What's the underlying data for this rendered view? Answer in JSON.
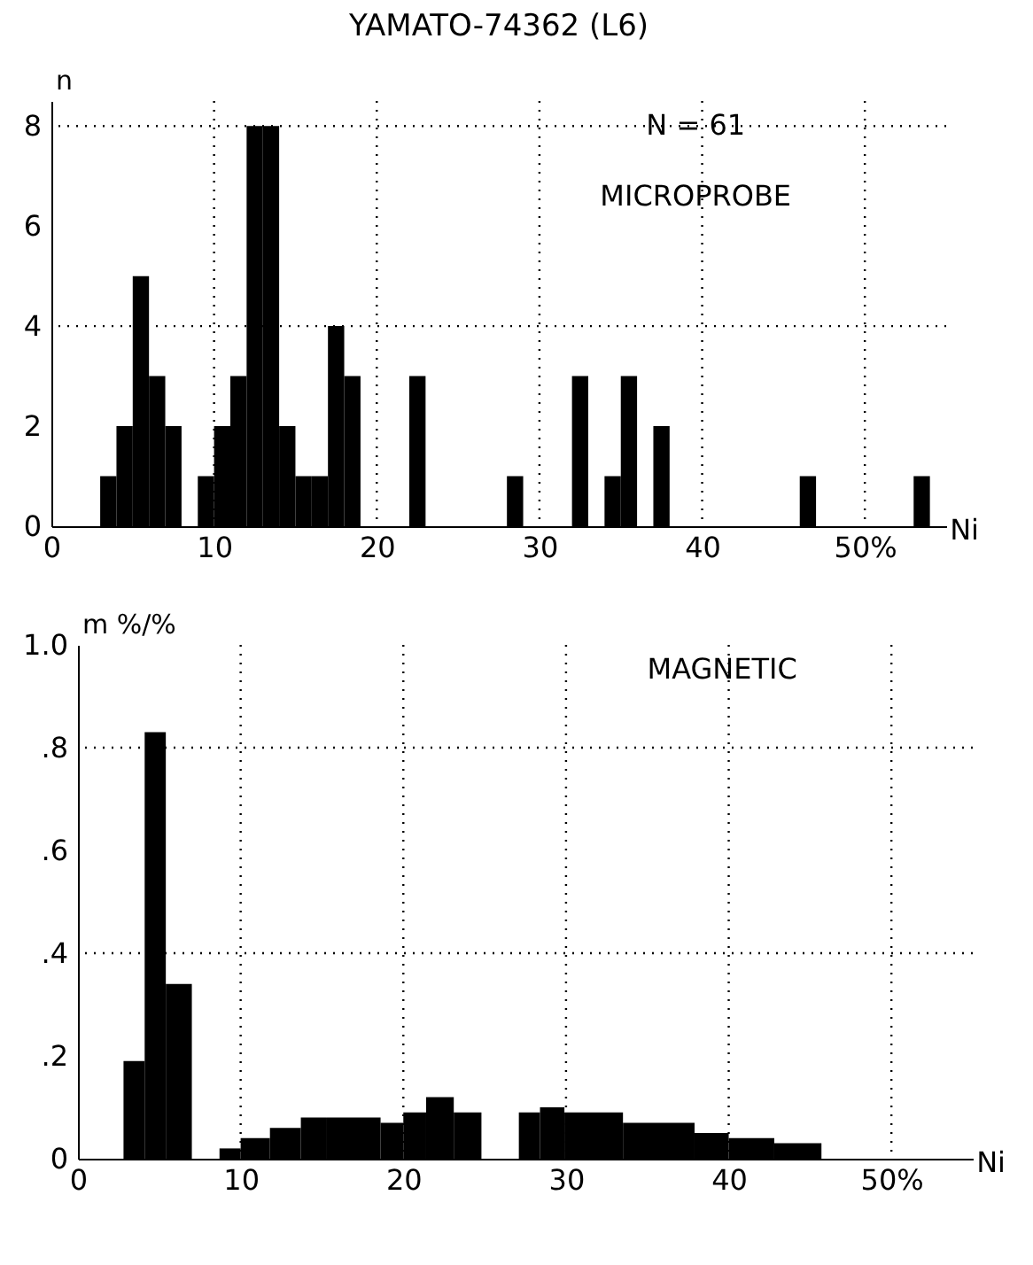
{
  "chart_data": [
    {
      "type": "histogram",
      "title": "YAMATO-74362 (L6)",
      "xlabel": "Ni",
      "ylabel": "n",
      "annotations": [
        "N = 61",
        "MICROPROBE"
      ],
      "bins": [
        3,
        4,
        5,
        6,
        7,
        8,
        9,
        10,
        11,
        12,
        13,
        14,
        15,
        16,
        17,
        18,
        19,
        20,
        21,
        22,
        23,
        24,
        25,
        26,
        27,
        28,
        29,
        30,
        31,
        32,
        33,
        34,
        35,
        36,
        37,
        38,
        39,
        40,
        41,
        42,
        43,
        44,
        45,
        46,
        47,
        48,
        49,
        50,
        51,
        52,
        53,
        54
      ],
      "values": [
        1,
        2,
        5,
        3,
        2,
        0,
        1,
        2,
        3,
        8,
        8,
        2,
        1,
        1,
        4,
        3,
        0,
        0,
        0,
        3,
        0,
        0,
        0,
        0,
        0,
        1,
        0,
        0,
        0,
        3,
        0,
        1,
        3,
        0,
        2,
        0,
        0,
        0,
        0,
        0,
        0,
        0,
        0,
        1,
        0,
        0,
        0,
        0,
        0,
        0,
        1
      ],
      "color": "#000000",
      "xlim": [
        0,
        55
      ],
      "ylim": [
        0,
        8.5
      ],
      "xticks": [
        0,
        10,
        20,
        30,
        40,
        {
          "value": 50,
          "label": "50%"
        }
      ],
      "yticks": [
        0,
        2,
        4,
        6,
        8
      ],
      "ref_lines": [
        {
          "axis": "y",
          "value": 4,
          "line_style": "dotted"
        },
        {
          "axis": "y",
          "value": 8,
          "line_style": "dotted"
        },
        {
          "axis": "x",
          "value": 10,
          "line_style": "dotted"
        },
        {
          "axis": "x",
          "value": 20,
          "line_style": "dotted"
        },
        {
          "axis": "x",
          "value": 30,
          "line_style": "dotted"
        },
        {
          "axis": "x",
          "value": 40,
          "line_style": "dotted"
        },
        {
          "axis": "x",
          "value": 50,
          "line_style": "dotted"
        }
      ]
    },
    {
      "type": "histogram",
      "xlabel": "Ni",
      "ylabel": "m %/%",
      "annotations": [
        "MAGNETIC"
      ],
      "bins": [
        2.8,
        4.1,
        5.4,
        7,
        8.7,
        10,
        11.8,
        13.7,
        15.3,
        18.6,
        20,
        21.4,
        23.1,
        24.8,
        27.1,
        28.4,
        29.9,
        33.5,
        37.9,
        40,
        42.8,
        45.7
      ],
      "values": [
        0.19,
        0.83,
        0.34,
        0,
        0.02,
        0.04,
        0.06,
        0.08,
        0.08,
        0.07,
        0.09,
        0.12,
        0.09,
        0,
        0.09,
        0.1,
        0.09,
        0.07,
        0.05,
        0.04,
        0.03
      ],
      "color": "#000000",
      "xlim": [
        0,
        55
      ],
      "ylim": [
        0,
        1
      ],
      "xticks": [
        0,
        10,
        20,
        30,
        40,
        {
          "value": 50,
          "label": "50%"
        }
      ],
      "yticks": [
        {
          "value": 0,
          "label": "0"
        },
        {
          "value": 0.2,
          "label": ".2"
        },
        {
          "value": 0.4,
          "label": ".4"
        },
        {
          "value": 0.6,
          "label": ".6"
        },
        {
          "value": 0.8,
          "label": ".8"
        },
        {
          "value": 1,
          "label": "1.0"
        }
      ],
      "ref_lines": [
        {
          "axis": "y",
          "value": 0.4,
          "line_style": "dotted"
        },
        {
          "axis": "y",
          "value": 0.8,
          "line_style": "dotted"
        },
        {
          "axis": "x",
          "value": 10,
          "line_style": "dotted"
        },
        {
          "axis": "x",
          "value": 20,
          "line_style": "dotted"
        },
        {
          "axis": "x",
          "value": 30,
          "line_style": "dotted"
        },
        {
          "axis": "x",
          "value": 40,
          "line_style": "dotted"
        },
        {
          "axis": "x",
          "value": 50,
          "line_style": "dotted"
        }
      ]
    }
  ]
}
